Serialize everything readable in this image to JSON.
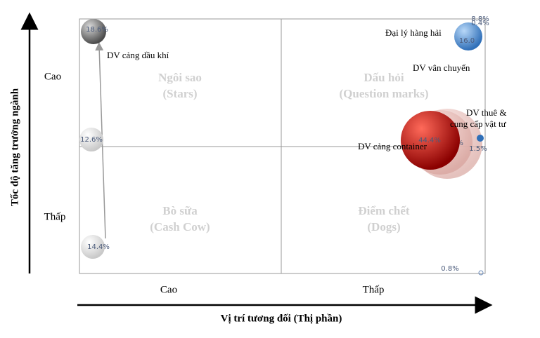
{
  "axes": {
    "y_title": "Tốc độ tăng trưởng ngành",
    "y_high": "Cao",
    "y_low": "Thấp",
    "x_high": "Cao",
    "x_low": "Thấp",
    "x_title": "Vị trí tương đối (Thị phần)"
  },
  "quadrants": [
    {
      "name": "Ngôi sao",
      "english": "(Stars)"
    },
    {
      "name": "Dấu hỏi",
      "english": "(Question marks)"
    },
    {
      "name": "Bò sữa",
      "english": "(Cash Cow)"
    },
    {
      "name": "Điểm chết",
      "english": "(Dogs)"
    }
  ],
  "bubbles": [
    {
      "label": "18.6%"
    },
    {
      "label": "12.6%"
    },
    {
      "label": "14.4%"
    },
    {
      "label": "16.0"
    },
    {
      "label": "8.8%"
    },
    {
      "label": "0.4%"
    },
    {
      "label": "49.2%"
    },
    {
      "label": "44.4%"
    },
    {
      "label": "1.5%"
    },
    {
      "label": "0.8%"
    }
  ],
  "callouts": [
    "DV cảng dầu khí",
    "Đại lý hàng hải",
    "DV vân chuyển",
    "DV thuê &",
    "cung cấp vật tư",
    "DV cảng container"
  ]
}
